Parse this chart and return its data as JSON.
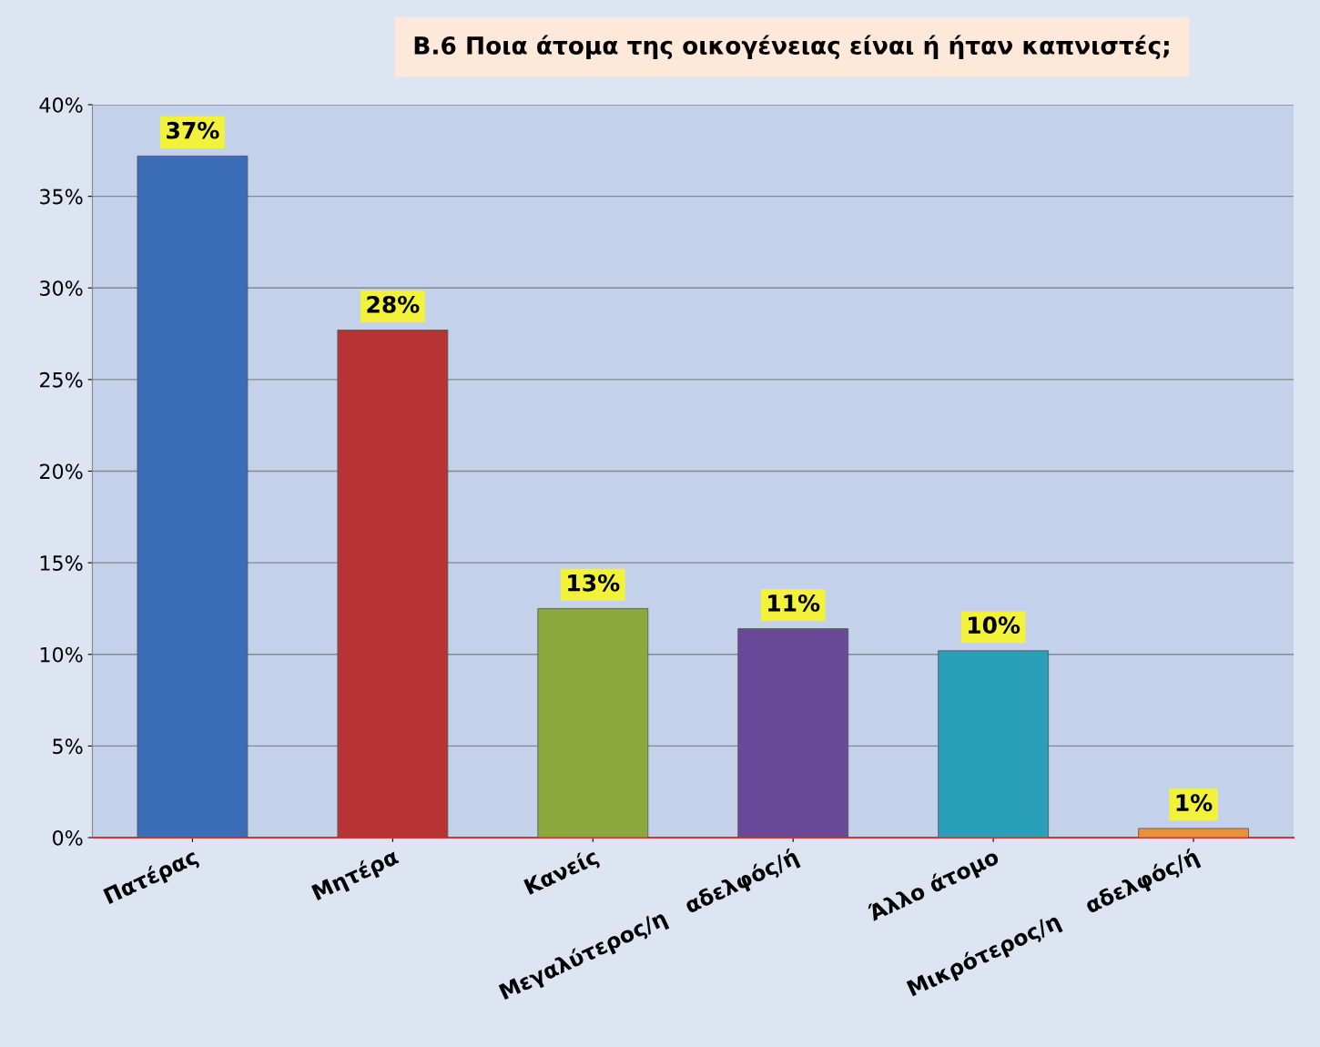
{
  "chart_data": {
    "type": "bar",
    "title": "Β.6 Ποια άτομα της οικογένειας είναι ή ήταν καπνιστές;",
    "categories": [
      "Πατέρας",
      "Μητέρα",
      "Κανείς",
      "Μεγαλύτερος/η   αδελφός/ή",
      "Άλλο άτομο",
      "Μικρότερος/η    αδελφός/ή"
    ],
    "values": [
      37.2,
      27.7,
      12.5,
      11.4,
      10.2,
      0.5
    ],
    "value_labels": [
      "37%",
      "28%",
      "13%",
      "11%",
      "10%",
      "1%"
    ],
    "colors": [
      "#3a6db5",
      "#b83434",
      "#8aa83c",
      "#6a4a98",
      "#2a9fb8",
      "#e8903a"
    ],
    "ylim": [
      0,
      40
    ],
    "yticks": [
      {
        "value": 0,
        "label": "0%"
      },
      {
        "value": 5,
        "label": "5%"
      },
      {
        "value": 10,
        "label": "10%"
      },
      {
        "value": 15,
        "label": "15%"
      },
      {
        "value": 20,
        "label": "20%"
      },
      {
        "value": 25,
        "label": "25%"
      },
      {
        "value": 30,
        "label": "30%"
      },
      {
        "value": 35,
        "label": "35%"
      },
      {
        "value": 40,
        "label": "40%"
      }
    ],
    "grid": "y",
    "legend": false
  }
}
